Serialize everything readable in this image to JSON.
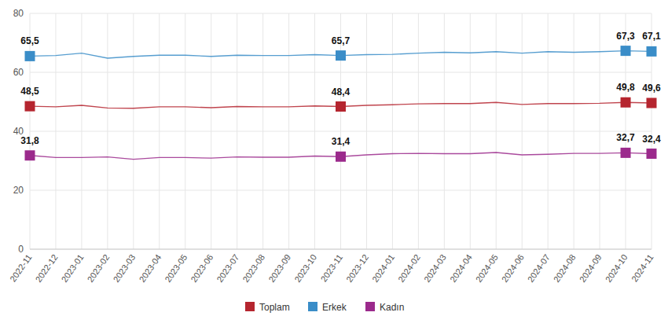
{
  "chart_data": {
    "type": "line",
    "categories": [
      "2022-11",
      "2022-12",
      "2023-01",
      "2023-02",
      "2023-03",
      "2023-04",
      "2023-05",
      "2023-06",
      "2023-07",
      "2023-08",
      "2023-09",
      "2023-10",
      "2023-11",
      "2023-12",
      "2024-01",
      "2024-02",
      "2024-03",
      "2024-04",
      "2024-05",
      "2024-06",
      "2024-07",
      "2024-08",
      "2024-09",
      "2024-10",
      "2024-11"
    ],
    "series": [
      {
        "name": "Toplam",
        "color": "#b5252f",
        "marker": "square",
        "values": [
          48.5,
          48.3,
          48.8,
          47.9,
          47.8,
          48.3,
          48.3,
          48.0,
          48.4,
          48.3,
          48.3,
          48.6,
          48.4,
          48.8,
          49.0,
          49.3,
          49.4,
          49.4,
          49.8,
          49.1,
          49.4,
          49.4,
          49.5,
          49.8,
          49.6
        ],
        "value_labels": [
          "48,5",
          null,
          null,
          null,
          null,
          null,
          null,
          null,
          null,
          null,
          null,
          null,
          "48,4",
          null,
          null,
          null,
          null,
          null,
          null,
          null,
          null,
          null,
          null,
          "49,8",
          "49,6"
        ]
      },
      {
        "name": "Erkek",
        "color": "#3a8dc8",
        "marker": "square",
        "values": [
          65.5,
          65.7,
          66.5,
          64.8,
          65.4,
          65.8,
          65.8,
          65.4,
          65.8,
          65.7,
          65.7,
          66.0,
          65.7,
          66.0,
          66.1,
          66.5,
          66.8,
          66.6,
          67.0,
          66.5,
          67.0,
          66.8,
          67.0,
          67.3,
          67.1
        ],
        "value_labels": [
          "65,5",
          null,
          null,
          null,
          null,
          null,
          null,
          null,
          null,
          null,
          null,
          null,
          "65,7",
          null,
          null,
          null,
          null,
          null,
          null,
          null,
          null,
          null,
          null,
          "67,3",
          "67,1"
        ]
      },
      {
        "name": "Kadın",
        "color": "#9b2a8c",
        "marker": "square",
        "values": [
          31.8,
          31.1,
          31.1,
          31.3,
          30.5,
          31.1,
          31.1,
          30.9,
          31.3,
          31.2,
          31.2,
          31.6,
          31.4,
          32.0,
          32.4,
          32.5,
          32.4,
          32.4,
          32.8,
          32.0,
          32.2,
          32.5,
          32.5,
          32.7,
          32.4
        ],
        "value_labels": [
          "31,8",
          null,
          null,
          null,
          null,
          null,
          null,
          null,
          null,
          null,
          null,
          null,
          "31,4",
          null,
          null,
          null,
          null,
          null,
          null,
          null,
          null,
          null,
          null,
          "32,7",
          "32,4"
        ]
      }
    ],
    "ylim": [
      0,
      80
    ],
    "yticks": [
      0,
      20,
      40,
      60,
      80
    ],
    "grid": true,
    "data_labels": true,
    "legend": "bottom"
  }
}
